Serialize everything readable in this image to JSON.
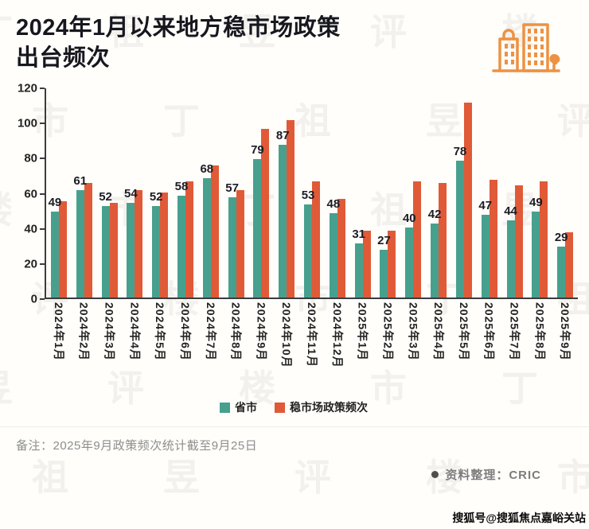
{
  "page": {
    "title_line1": "2024年1月以来地方稳市场政策",
    "title_line2": "出台频次",
    "note": "备注：2025年9月政策频次统计截至9月25日",
    "source_label": "资料整理：CRIC",
    "corner_watermark": "搜狐号@搜狐焦点嘉峪关站",
    "background_watermark_text": "丁祖昱评楼市",
    "icons": {
      "header_icon": "buildings-icon",
      "header_icon_color": "#ED9242"
    }
  },
  "chart_data": {
    "type": "bar",
    "title": "2024年1月以来地方稳市场政策出台频次",
    "categories": [
      "2024年1月",
      "2024年2月",
      "2024年3月",
      "2024年4月",
      "2024年5月",
      "2024年6月",
      "2024年7月",
      "2024年8月",
      "2024年9月",
      "2024年10月",
      "2024年11月",
      "2024年12月",
      "2025年1月",
      "2025年2月",
      "2025年3月",
      "2025年4月",
      "2025年5月",
      "2025年6月",
      "2025年7月",
      "2025年8月",
      "2025年9月"
    ],
    "series": [
      {
        "name": "省市",
        "color": "#47A08E",
        "values": [
          49,
          61,
          52,
          54,
          52,
          58,
          68,
          57,
          79,
          87,
          53,
          48,
          31,
          27,
          40,
          42,
          78,
          47,
          44,
          49,
          29
        ],
        "data_labels": true
      },
      {
        "name": "稳市场政策频次",
        "color": "#E05A38",
        "values": [
          55,
          65,
          54,
          61,
          60,
          66,
          75,
          61,
          96,
          101,
          66,
          56,
          38,
          38,
          66,
          65,
          111,
          67,
          64,
          66,
          37
        ],
        "data_labels": false
      }
    ],
    "xlabel": "",
    "ylabel": "",
    "ylim": [
      0,
      120
    ],
    "yticks": [
      0,
      20,
      40,
      60,
      80,
      100,
      120
    ],
    "grid": false,
    "legend_position": "bottom",
    "axis_color": "#3c3c3c"
  }
}
